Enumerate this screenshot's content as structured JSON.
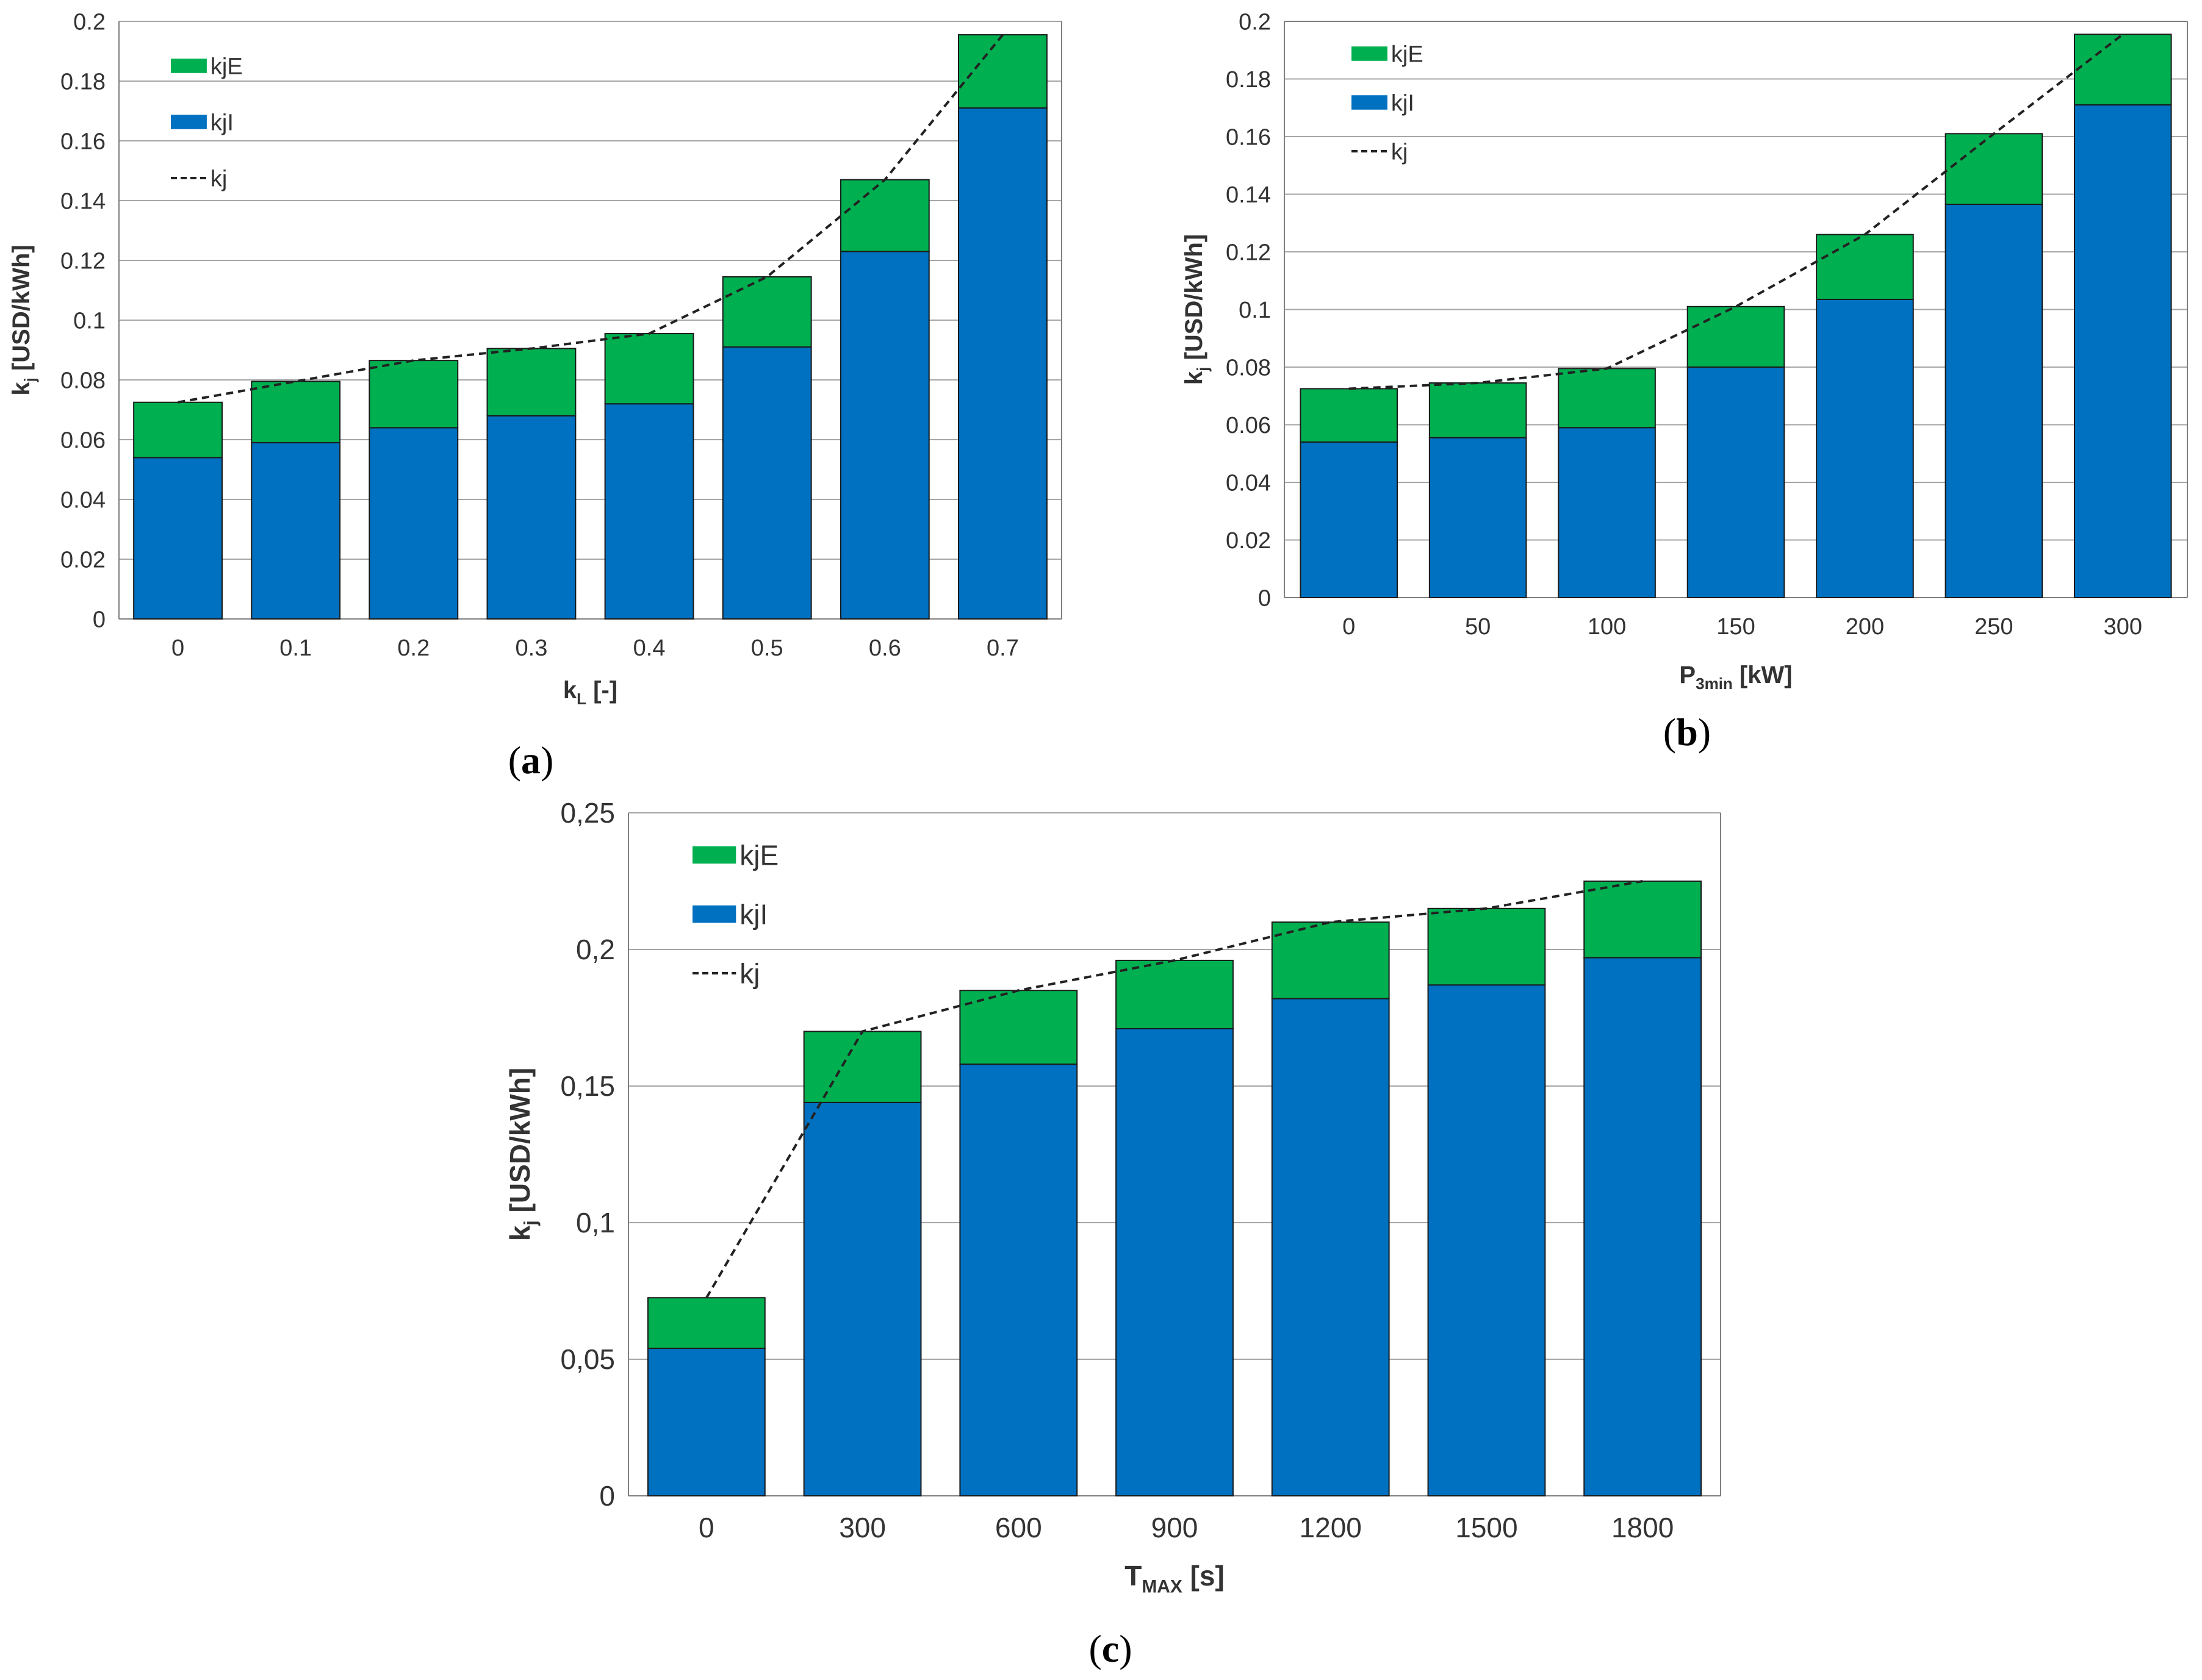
{
  "colors": {
    "kjE": "#00b050",
    "kjI": "#0070c0",
    "kj": "#222222",
    "grid": "#a6a6a6",
    "axis": "#7f7f7f"
  },
  "chart_data": [
    {
      "id": "a",
      "type": "bar",
      "stacked": true,
      "caption": {
        "open": "(",
        "letter": "a",
        "close": ")"
      },
      "categories": [
        "0",
        "0.1",
        "0.2",
        "0.3",
        "0.4",
        "0.5",
        "0.6",
        "0.7"
      ],
      "series": [
        {
          "name": "kjI",
          "values": [
            0.054,
            0.059,
            0.064,
            0.068,
            0.072,
            0.091,
            0.123,
            0.171
          ]
        },
        {
          "name": "kjE",
          "values": [
            0.0185,
            0.0205,
            0.0225,
            0.0225,
            0.0235,
            0.0235,
            0.024,
            0.0245
          ]
        }
      ],
      "line": {
        "name": "kj",
        "values": [
          0.0725,
          0.0795,
          0.0865,
          0.0905,
          0.0955,
          0.1145,
          0.147,
          0.1955
        ]
      },
      "ylim": [
        0,
        0.2
      ],
      "yticks": [
        "0",
        "0.02",
        "0.04",
        "0.06",
        "0.08",
        "0.1",
        "0.12",
        "0.14",
        "0.16",
        "0.18",
        "0.2"
      ],
      "ylabel": {
        "main": "k",
        "sub": "j",
        "rest": " [USD/kWh]"
      },
      "xlabel": {
        "main": "k",
        "sub": "L",
        "rest": " [-]"
      },
      "legend": [
        "kjE",
        "kjI",
        "kj"
      ],
      "legend_position": "top-left",
      "grid": true
    },
    {
      "id": "b",
      "type": "bar",
      "stacked": true,
      "caption": {
        "open": "(",
        "letter": "b",
        "close": ")"
      },
      "categories": [
        "0",
        "50",
        "100",
        "150",
        "200",
        "250",
        "300"
      ],
      "series": [
        {
          "name": "kjI",
          "values": [
            0.054,
            0.0555,
            0.059,
            0.08,
            0.1035,
            0.1365,
            0.171
          ]
        },
        {
          "name": "kjE",
          "values": [
            0.0185,
            0.019,
            0.0205,
            0.021,
            0.0225,
            0.0245,
            0.0245
          ]
        }
      ],
      "line": {
        "name": "kj",
        "values": [
          0.0725,
          0.0745,
          0.0795,
          0.101,
          0.126,
          0.161,
          0.1955
        ]
      },
      "ylim": [
        0,
        0.2
      ],
      "yticks": [
        "0",
        "0.02",
        "0.04",
        "0.06",
        "0.08",
        "0.1",
        "0.12",
        "0.14",
        "0.16",
        "0.18",
        "0.2"
      ],
      "ylabel": {
        "main": "k",
        "sub": "j",
        "rest": " [USD/kWh]"
      },
      "xlabel": {
        "main": "P",
        "sub": "3min",
        "rest": " [kW]"
      },
      "legend": [
        "kjE",
        "kjI",
        "kj"
      ],
      "legend_position": "top-left",
      "grid": true
    },
    {
      "id": "c",
      "type": "bar",
      "stacked": true,
      "caption": {
        "open": "(",
        "letter": "c",
        "close": ")"
      },
      "categories": [
        "0",
        "300",
        "600",
        "900",
        "1200",
        "1500",
        "1800"
      ],
      "series": [
        {
          "name": "kjI",
          "values": [
            0.054,
            0.144,
            0.158,
            0.171,
            0.182,
            0.187,
            0.197
          ]
        },
        {
          "name": "kjE",
          "values": [
            0.0185,
            0.026,
            0.027,
            0.025,
            0.028,
            0.028,
            0.028
          ]
        }
      ],
      "line": {
        "name": "kj",
        "values": [
          0.0725,
          0.17,
          0.185,
          0.196,
          0.21,
          0.215,
          0.225
        ]
      },
      "ylim": [
        0,
        0.25
      ],
      "yticks": [
        "0",
        "0,05",
        "0,1",
        "0,15",
        "0,2",
        "0,25"
      ],
      "ylabel": {
        "main": "k",
        "sub": "j",
        "rest": " [USD/kWh]"
      },
      "xlabel": {
        "main": "T",
        "sub": "MAX",
        "rest": " [s]"
      },
      "legend": [
        "kjE",
        "kjI",
        "kj"
      ],
      "legend_position": "top-left",
      "grid": true
    }
  ]
}
